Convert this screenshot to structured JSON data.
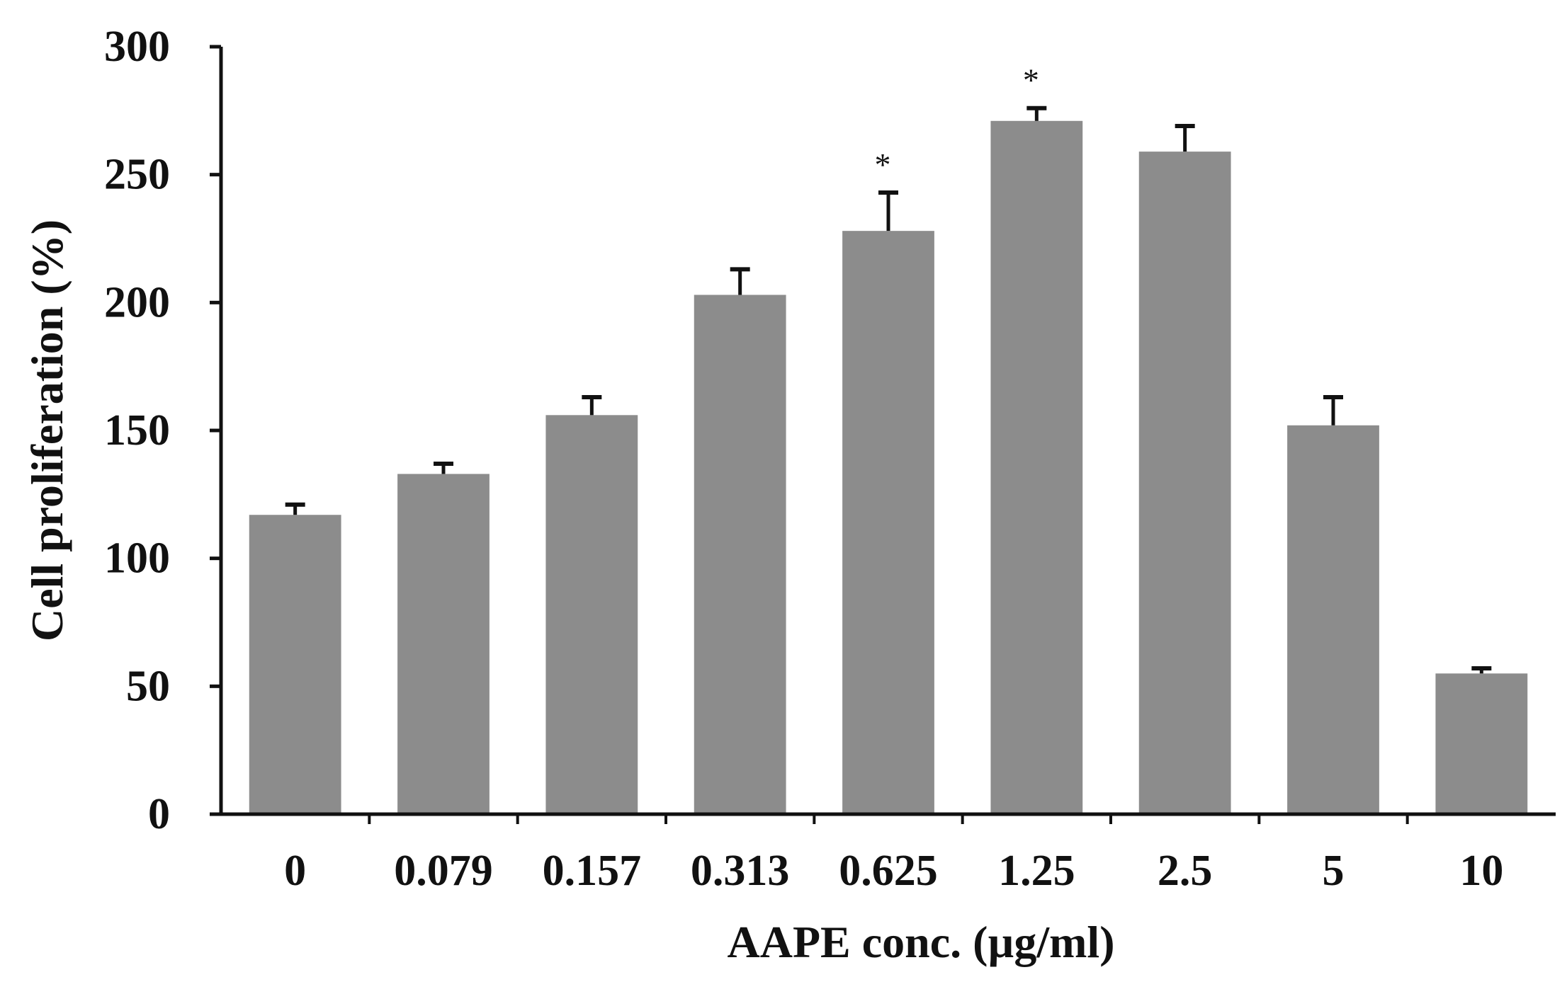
{
  "chart_data": {
    "type": "bar",
    "title": "",
    "xlabel": "AAPE conc. (µg/ml)",
    "ylabel": "Cell proliferation (%)",
    "categories": [
      "0",
      "0.079",
      "0.157",
      "0.313",
      "0.625",
      "1.25",
      "2.5",
      "5",
      "10"
    ],
    "values": [
      117,
      133,
      156,
      203,
      228,
      271,
      259,
      152,
      55
    ],
    "errors": [
      4,
      4,
      7,
      10,
      15,
      5,
      10,
      11,
      2
    ],
    "significance": [
      "",
      "",
      "",
      "",
      "*",
      "*",
      "",
      "",
      ""
    ],
    "ylim": [
      0,
      300
    ],
    "yticks": [
      0,
      50,
      100,
      150,
      200,
      250,
      300
    ],
    "grid": false,
    "legend": "none",
    "colors": {
      "bar": "#8c8c8c",
      "axis": "#111111",
      "error": "#111111"
    }
  }
}
